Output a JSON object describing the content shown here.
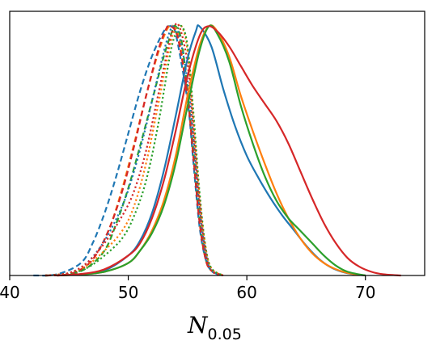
{
  "chart_data": {
    "type": "line",
    "xlabel_main": "N",
    "xlabel_sub": "0.05",
    "xlim": [
      40,
      75
    ],
    "ylim": [
      0,
      1.06
    ],
    "x_ticks": [
      40,
      50,
      60,
      70
    ],
    "y_ticks": [],
    "grid": false,
    "series": [
      {
        "color": "#1f77b4",
        "style": "dashed",
        "points": [
          [
            42,
            0
          ],
          [
            44,
            0.005
          ],
          [
            46,
            0.05
          ],
          [
            47,
            0.13
          ],
          [
            48,
            0.25
          ],
          [
            49,
            0.4
          ],
          [
            50,
            0.57
          ],
          [
            51,
            0.74
          ],
          [
            52,
            0.88
          ],
          [
            53,
            0.98
          ],
          [
            53.5,
            1.0
          ],
          [
            54,
            0.97
          ],
          [
            55,
            0.7
          ],
          [
            55.5,
            0.45
          ],
          [
            56,
            0.2
          ],
          [
            56.5,
            0.07
          ],
          [
            57,
            0.02
          ],
          [
            58,
            0
          ]
        ]
      },
      {
        "color": "#ff7f0e",
        "style": "dashed",
        "points": [
          [
            43,
            0
          ],
          [
            45,
            0.005
          ],
          [
            46.5,
            0.04
          ],
          [
            47.5,
            0.1
          ],
          [
            48.5,
            0.2
          ],
          [
            49.5,
            0.35
          ],
          [
            50.5,
            0.53
          ],
          [
            51.5,
            0.72
          ],
          [
            52.5,
            0.89
          ],
          [
            53.3,
            0.99
          ],
          [
            53.8,
            1.0
          ],
          [
            54.3,
            0.95
          ],
          [
            55,
            0.72
          ],
          [
            55.5,
            0.48
          ],
          [
            56,
            0.22
          ],
          [
            56.5,
            0.07
          ],
          [
            57,
            0.02
          ],
          [
            58,
            0
          ]
        ]
      },
      {
        "color": "#2ca02c",
        "style": "dashed",
        "points": [
          [
            43,
            0
          ],
          [
            45,
            0.005
          ],
          [
            46.5,
            0.03
          ],
          [
            48,
            0.1
          ],
          [
            49,
            0.21
          ],
          [
            50,
            0.35
          ],
          [
            51,
            0.52
          ],
          [
            52,
            0.7
          ],
          [
            53,
            0.88
          ],
          [
            53.7,
            0.98
          ],
          [
            54,
            1.0
          ],
          [
            54.5,
            0.94
          ],
          [
            55,
            0.74
          ],
          [
            55.5,
            0.5
          ],
          [
            56,
            0.24
          ],
          [
            56.5,
            0.08
          ],
          [
            57,
            0.02
          ],
          [
            58,
            0
          ]
        ]
      },
      {
        "color": "#d62728",
        "style": "dashed",
        "points": [
          [
            43,
            0
          ],
          [
            45,
            0.005
          ],
          [
            46.5,
            0.04
          ],
          [
            47.5,
            0.1
          ],
          [
            48.5,
            0.2
          ],
          [
            49.5,
            0.34
          ],
          [
            50.5,
            0.52
          ],
          [
            51.5,
            0.72
          ],
          [
            52.5,
            0.9
          ],
          [
            53.2,
            0.99
          ],
          [
            53.6,
            1.0
          ],
          [
            54.2,
            0.95
          ],
          [
            55,
            0.72
          ],
          [
            55.5,
            0.47
          ],
          [
            56,
            0.22
          ],
          [
            56.5,
            0.07
          ],
          [
            57,
            0.02
          ],
          [
            58,
            0
          ]
        ]
      },
      {
        "color": "#1f77b4",
        "style": "dotted",
        "points": [
          [
            43,
            0
          ],
          [
            45,
            0.01
          ],
          [
            46.5,
            0.05
          ],
          [
            48,
            0.14
          ],
          [
            49.5,
            0.28
          ],
          [
            50.5,
            0.42
          ],
          [
            51.5,
            0.6
          ],
          [
            52.5,
            0.8
          ],
          [
            53.3,
            0.95
          ],
          [
            53.8,
            1.0
          ],
          [
            54.3,
            0.96
          ],
          [
            55,
            0.78
          ],
          [
            55.5,
            0.55
          ],
          [
            56,
            0.28
          ],
          [
            56.5,
            0.1
          ],
          [
            57,
            0.02
          ],
          [
            58,
            0
          ]
        ]
      },
      {
        "color": "#ff7f0e",
        "style": "dotted",
        "points": [
          [
            43,
            0
          ],
          [
            45,
            0.01
          ],
          [
            46.5,
            0.04
          ],
          [
            48,
            0.1
          ],
          [
            49.5,
            0.18
          ],
          [
            50.5,
            0.28
          ],
          [
            51.5,
            0.45
          ],
          [
            52.5,
            0.68
          ],
          [
            53.5,
            0.92
          ],
          [
            54,
            0.99
          ],
          [
            54.5,
            1.0
          ],
          [
            55,
            0.9
          ],
          [
            55.5,
            0.62
          ],
          [
            56,
            0.32
          ],
          [
            56.5,
            0.12
          ],
          [
            57,
            0.03
          ],
          [
            58,
            0
          ]
        ]
      },
      {
        "color": "#2ca02c",
        "style": "dotted",
        "points": [
          [
            43,
            0
          ],
          [
            45,
            0.008
          ],
          [
            46.5,
            0.03
          ],
          [
            48,
            0.08
          ],
          [
            49.5,
            0.15
          ],
          [
            50.5,
            0.24
          ],
          [
            51.5,
            0.38
          ],
          [
            52.5,
            0.6
          ],
          [
            53.5,
            0.88
          ],
          [
            54,
            0.97
          ],
          [
            54.5,
            1.0
          ],
          [
            55,
            0.92
          ],
          [
            55.5,
            0.65
          ],
          [
            56,
            0.34
          ],
          [
            56.5,
            0.12
          ],
          [
            57,
            0.03
          ],
          [
            58,
            0
          ]
        ]
      },
      {
        "color": "#d62728",
        "style": "dotted",
        "points": [
          [
            43,
            0
          ],
          [
            45,
            0.01
          ],
          [
            46.5,
            0.05
          ],
          [
            48,
            0.13
          ],
          [
            49.5,
            0.24
          ],
          [
            50.5,
            0.34
          ],
          [
            51.5,
            0.5
          ],
          [
            52.5,
            0.72
          ],
          [
            53.3,
            0.9
          ],
          [
            53.8,
            0.99
          ],
          [
            54.3,
            1.0
          ],
          [
            55,
            0.85
          ],
          [
            55.5,
            0.58
          ],
          [
            56,
            0.3
          ],
          [
            56.5,
            0.1
          ],
          [
            57,
            0.02
          ],
          [
            58,
            0
          ]
        ]
      },
      {
        "color": "#1f77b4",
        "style": "solid",
        "points": [
          [
            44,
            0
          ],
          [
            46,
            0.005
          ],
          [
            48,
            0.02
          ],
          [
            50,
            0.08
          ],
          [
            51,
            0.14
          ],
          [
            52,
            0.25
          ],
          [
            53,
            0.42
          ],
          [
            54,
            0.64
          ],
          [
            55,
            0.87
          ],
          [
            55.7,
            0.98
          ],
          [
            56,
            1.0
          ],
          [
            57,
            0.92
          ],
          [
            58,
            0.75
          ],
          [
            59,
            0.6
          ],
          [
            60,
            0.48
          ],
          [
            61,
            0.39
          ],
          [
            62,
            0.31
          ],
          [
            63,
            0.24
          ],
          [
            64,
            0.18
          ],
          [
            65,
            0.12
          ],
          [
            66,
            0.07
          ],
          [
            67,
            0.035
          ],
          [
            68,
            0.015
          ],
          [
            69,
            0.005
          ],
          [
            70,
            0
          ]
        ]
      },
      {
        "color": "#ff7f0e",
        "style": "solid",
        "points": [
          [
            44,
            0
          ],
          [
            46,
            0.004
          ],
          [
            48,
            0.015
          ],
          [
            50,
            0.05
          ],
          [
            51,
            0.1
          ],
          [
            52,
            0.18
          ],
          [
            53,
            0.3
          ],
          [
            54,
            0.48
          ],
          [
            55,
            0.72
          ],
          [
            56,
            0.92
          ],
          [
            56.8,
            1.0
          ],
          [
            57.5,
            0.98
          ],
          [
            58.5,
            0.88
          ],
          [
            59.5,
            0.72
          ],
          [
            60.5,
            0.58
          ],
          [
            61.5,
            0.45
          ],
          [
            62.5,
            0.33
          ],
          [
            63.5,
            0.23
          ],
          [
            64.5,
            0.15
          ],
          [
            65.5,
            0.09
          ],
          [
            66.5,
            0.05
          ],
          [
            67.5,
            0.025
          ],
          [
            68.5,
            0.01
          ],
          [
            70,
            0
          ]
        ]
      },
      {
        "color": "#2ca02c",
        "style": "solid",
        "points": [
          [
            44,
            0
          ],
          [
            46,
            0.004
          ],
          [
            48,
            0.015
          ],
          [
            50,
            0.05
          ],
          [
            51,
            0.1
          ],
          [
            52,
            0.17
          ],
          [
            53,
            0.28
          ],
          [
            54,
            0.45
          ],
          [
            55,
            0.68
          ],
          [
            56,
            0.9
          ],
          [
            56.8,
            1.0
          ],
          [
            57.5,
            0.97
          ],
          [
            58.5,
            0.86
          ],
          [
            59.5,
            0.68
          ],
          [
            60.5,
            0.53
          ],
          [
            61.5,
            0.4
          ],
          [
            62.5,
            0.3
          ],
          [
            63.5,
            0.23
          ],
          [
            64.5,
            0.18
          ],
          [
            65.5,
            0.13
          ],
          [
            66.5,
            0.08
          ],
          [
            67.5,
            0.04
          ],
          [
            68.5,
            0.015
          ],
          [
            70,
            0
          ]
        ]
      },
      {
        "color": "#d62728",
        "style": "solid",
        "points": [
          [
            44,
            0
          ],
          [
            46,
            0.006
          ],
          [
            48,
            0.025
          ],
          [
            50,
            0.08
          ],
          [
            51,
            0.13
          ],
          [
            52,
            0.23
          ],
          [
            53,
            0.38
          ],
          [
            54,
            0.58
          ],
          [
            55,
            0.8
          ],
          [
            56,
            0.96
          ],
          [
            56.7,
            1.0
          ],
          [
            57.5,
            0.98
          ],
          [
            58.5,
            0.92
          ],
          [
            59.5,
            0.84
          ],
          [
            60.5,
            0.76
          ],
          [
            61.5,
            0.69
          ],
          [
            62.5,
            0.62
          ],
          [
            63.5,
            0.53
          ],
          [
            64.5,
            0.42
          ],
          [
            65.5,
            0.31
          ],
          [
            66.5,
            0.21
          ],
          [
            67.5,
            0.13
          ],
          [
            68.5,
            0.07
          ],
          [
            69.5,
            0.035
          ],
          [
            70.5,
            0.015
          ],
          [
            71.5,
            0.005
          ],
          [
            73,
            0
          ]
        ]
      }
    ]
  }
}
